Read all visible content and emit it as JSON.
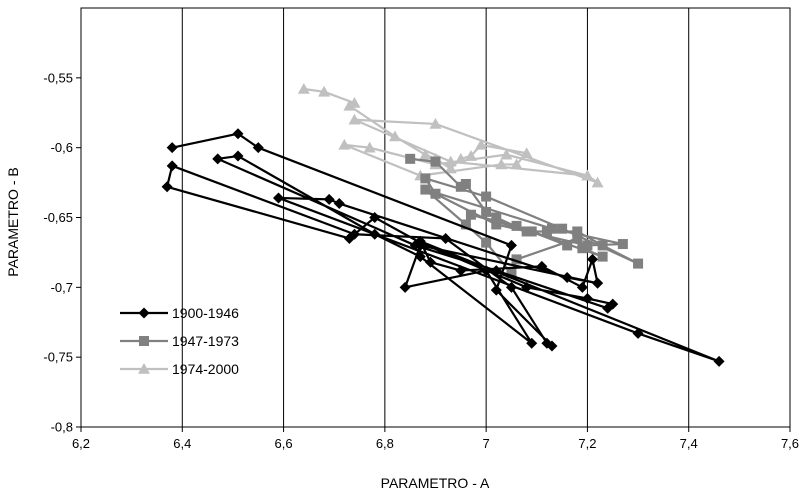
{
  "chart_data": {
    "type": "line",
    "title": "",
    "xlabel": "PARAMETRO - A",
    "ylabel": "PARAMETRO - B",
    "xlim": [
      6.2,
      7.6
    ],
    "ylim": [
      -0.8,
      -0.5
    ],
    "x_ticks": [
      6.2,
      6.4,
      6.6,
      6.8,
      7.0,
      7.2,
      7.4,
      7.6
    ],
    "x_tick_labels": [
      "6,2",
      "6,4",
      "6,6",
      "6,8",
      "7",
      "7,2",
      "7,4",
      "7,6"
    ],
    "y_ticks": [
      -0.55,
      -0.6,
      -0.65,
      -0.7,
      -0.75,
      -0.8
    ],
    "y_tick_labels": [
      "-0,55",
      "-0,6",
      "-0,65",
      "-0,7",
      "-0,75",
      "-0,8"
    ],
    "grid": "vertical",
    "legend_position": "bottom-left",
    "series": [
      {
        "name": "1900-1946",
        "color": "#000000",
        "marker": "diamond",
        "points": [
          [
            6.38,
            -0.6
          ],
          [
            6.51,
            -0.59
          ],
          [
            6.55,
            -0.6
          ],
          [
            7.05,
            -0.67
          ],
          [
            7.02,
            -0.702
          ],
          [
            7.13,
            -0.742
          ],
          [
            7.12,
            -0.74
          ],
          [
            7.05,
            -0.7
          ],
          [
            6.92,
            -0.665
          ],
          [
            6.74,
            -0.662
          ],
          [
            6.38,
            -0.613
          ],
          [
            6.37,
            -0.628
          ],
          [
            6.73,
            -0.665
          ],
          [
            6.78,
            -0.65
          ],
          [
            6.87,
            -0.668
          ],
          [
            7.08,
            -0.7
          ],
          [
            7.2,
            -0.708
          ],
          [
            7.25,
            -0.712
          ],
          [
            7.24,
            -0.715
          ],
          [
            7.02,
            -0.688
          ],
          [
            6.86,
            -0.67
          ],
          [
            6.47,
            -0.608
          ],
          [
            6.51,
            -0.606
          ],
          [
            6.78,
            -0.662
          ],
          [
            6.87,
            -0.678
          ],
          [
            7.09,
            -0.74
          ],
          [
            7.0,
            -0.688
          ],
          [
            6.84,
            -0.7
          ],
          [
            6.87,
            -0.67
          ],
          [
            7.22,
            -0.697
          ],
          [
            7.21,
            -0.68
          ],
          [
            7.19,
            -0.7
          ],
          [
            7.11,
            -0.685
          ],
          [
            6.95,
            -0.688
          ],
          [
            6.89,
            -0.682
          ],
          [
            6.87,
            -0.667
          ],
          [
            7.46,
            -0.753
          ],
          [
            7.3,
            -0.733
          ],
          [
            6.59,
            -0.636
          ],
          [
            6.69,
            -0.637
          ],
          [
            6.71,
            -0.64
          ],
          [
            7.16,
            -0.693
          ],
          [
            7.22,
            -0.697
          ]
        ]
      },
      {
        "name": "1947-1973",
        "color": "#808080",
        "marker": "square",
        "points": [
          [
            6.85,
            -0.608
          ],
          [
            6.9,
            -0.61
          ],
          [
            6.95,
            -0.628
          ],
          [
            6.96,
            -0.626
          ],
          [
            7.0,
            -0.646
          ],
          [
            7.02,
            -0.65
          ],
          [
            7.08,
            -0.66
          ],
          [
            7.12,
            -0.66
          ],
          [
            7.18,
            -0.66
          ],
          [
            7.23,
            -0.67
          ],
          [
            7.3,
            -0.683
          ],
          [
            7.15,
            -0.658
          ],
          [
            7.0,
            -0.635
          ],
          [
            6.88,
            -0.622
          ],
          [
            6.9,
            -0.633
          ],
          [
            7.02,
            -0.655
          ],
          [
            7.2,
            -0.67
          ],
          [
            7.27,
            -0.669
          ],
          [
            7.13,
            -0.658
          ],
          [
            6.88,
            -0.63
          ],
          [
            6.96,
            -0.655
          ],
          [
            7.0,
            -0.668
          ],
          [
            7.05,
            -0.69
          ],
          [
            7.06,
            -0.68
          ],
          [
            7.18,
            -0.665
          ],
          [
            7.19,
            -0.672
          ],
          [
            7.23,
            -0.678
          ],
          [
            7.09,
            -0.66
          ],
          [
            6.97,
            -0.648
          ],
          [
            7.06,
            -0.656
          ],
          [
            7.16,
            -0.67
          ]
        ]
      },
      {
        "name": "1974-2000",
        "color": "#c0c0c0",
        "marker": "triangle",
        "points": [
          [
            6.64,
            -0.558
          ],
          [
            6.68,
            -0.56
          ],
          [
            6.74,
            -0.568
          ],
          [
            6.73,
            -0.57
          ],
          [
            6.82,
            -0.592
          ],
          [
            6.88,
            -0.605
          ],
          [
            6.9,
            -0.608
          ],
          [
            6.93,
            -0.615
          ],
          [
            6.95,
            -0.608
          ],
          [
            6.97,
            -0.606
          ],
          [
            6.99,
            -0.598
          ],
          [
            7.08,
            -0.604
          ],
          [
            7.06,
            -0.612
          ],
          [
            7.03,
            -0.612
          ],
          [
            6.87,
            -0.62
          ],
          [
            6.72,
            -0.598
          ],
          [
            6.77,
            -0.6
          ],
          [
            6.9,
            -0.612
          ],
          [
            7.04,
            -0.605
          ],
          [
            7.2,
            -0.62
          ],
          [
            7.22,
            -0.625
          ],
          [
            6.9,
            -0.583
          ],
          [
            6.74,
            -0.58
          ],
          [
            6.93,
            -0.61
          ],
          [
            7.2,
            -0.62
          ]
        ]
      }
    ]
  }
}
